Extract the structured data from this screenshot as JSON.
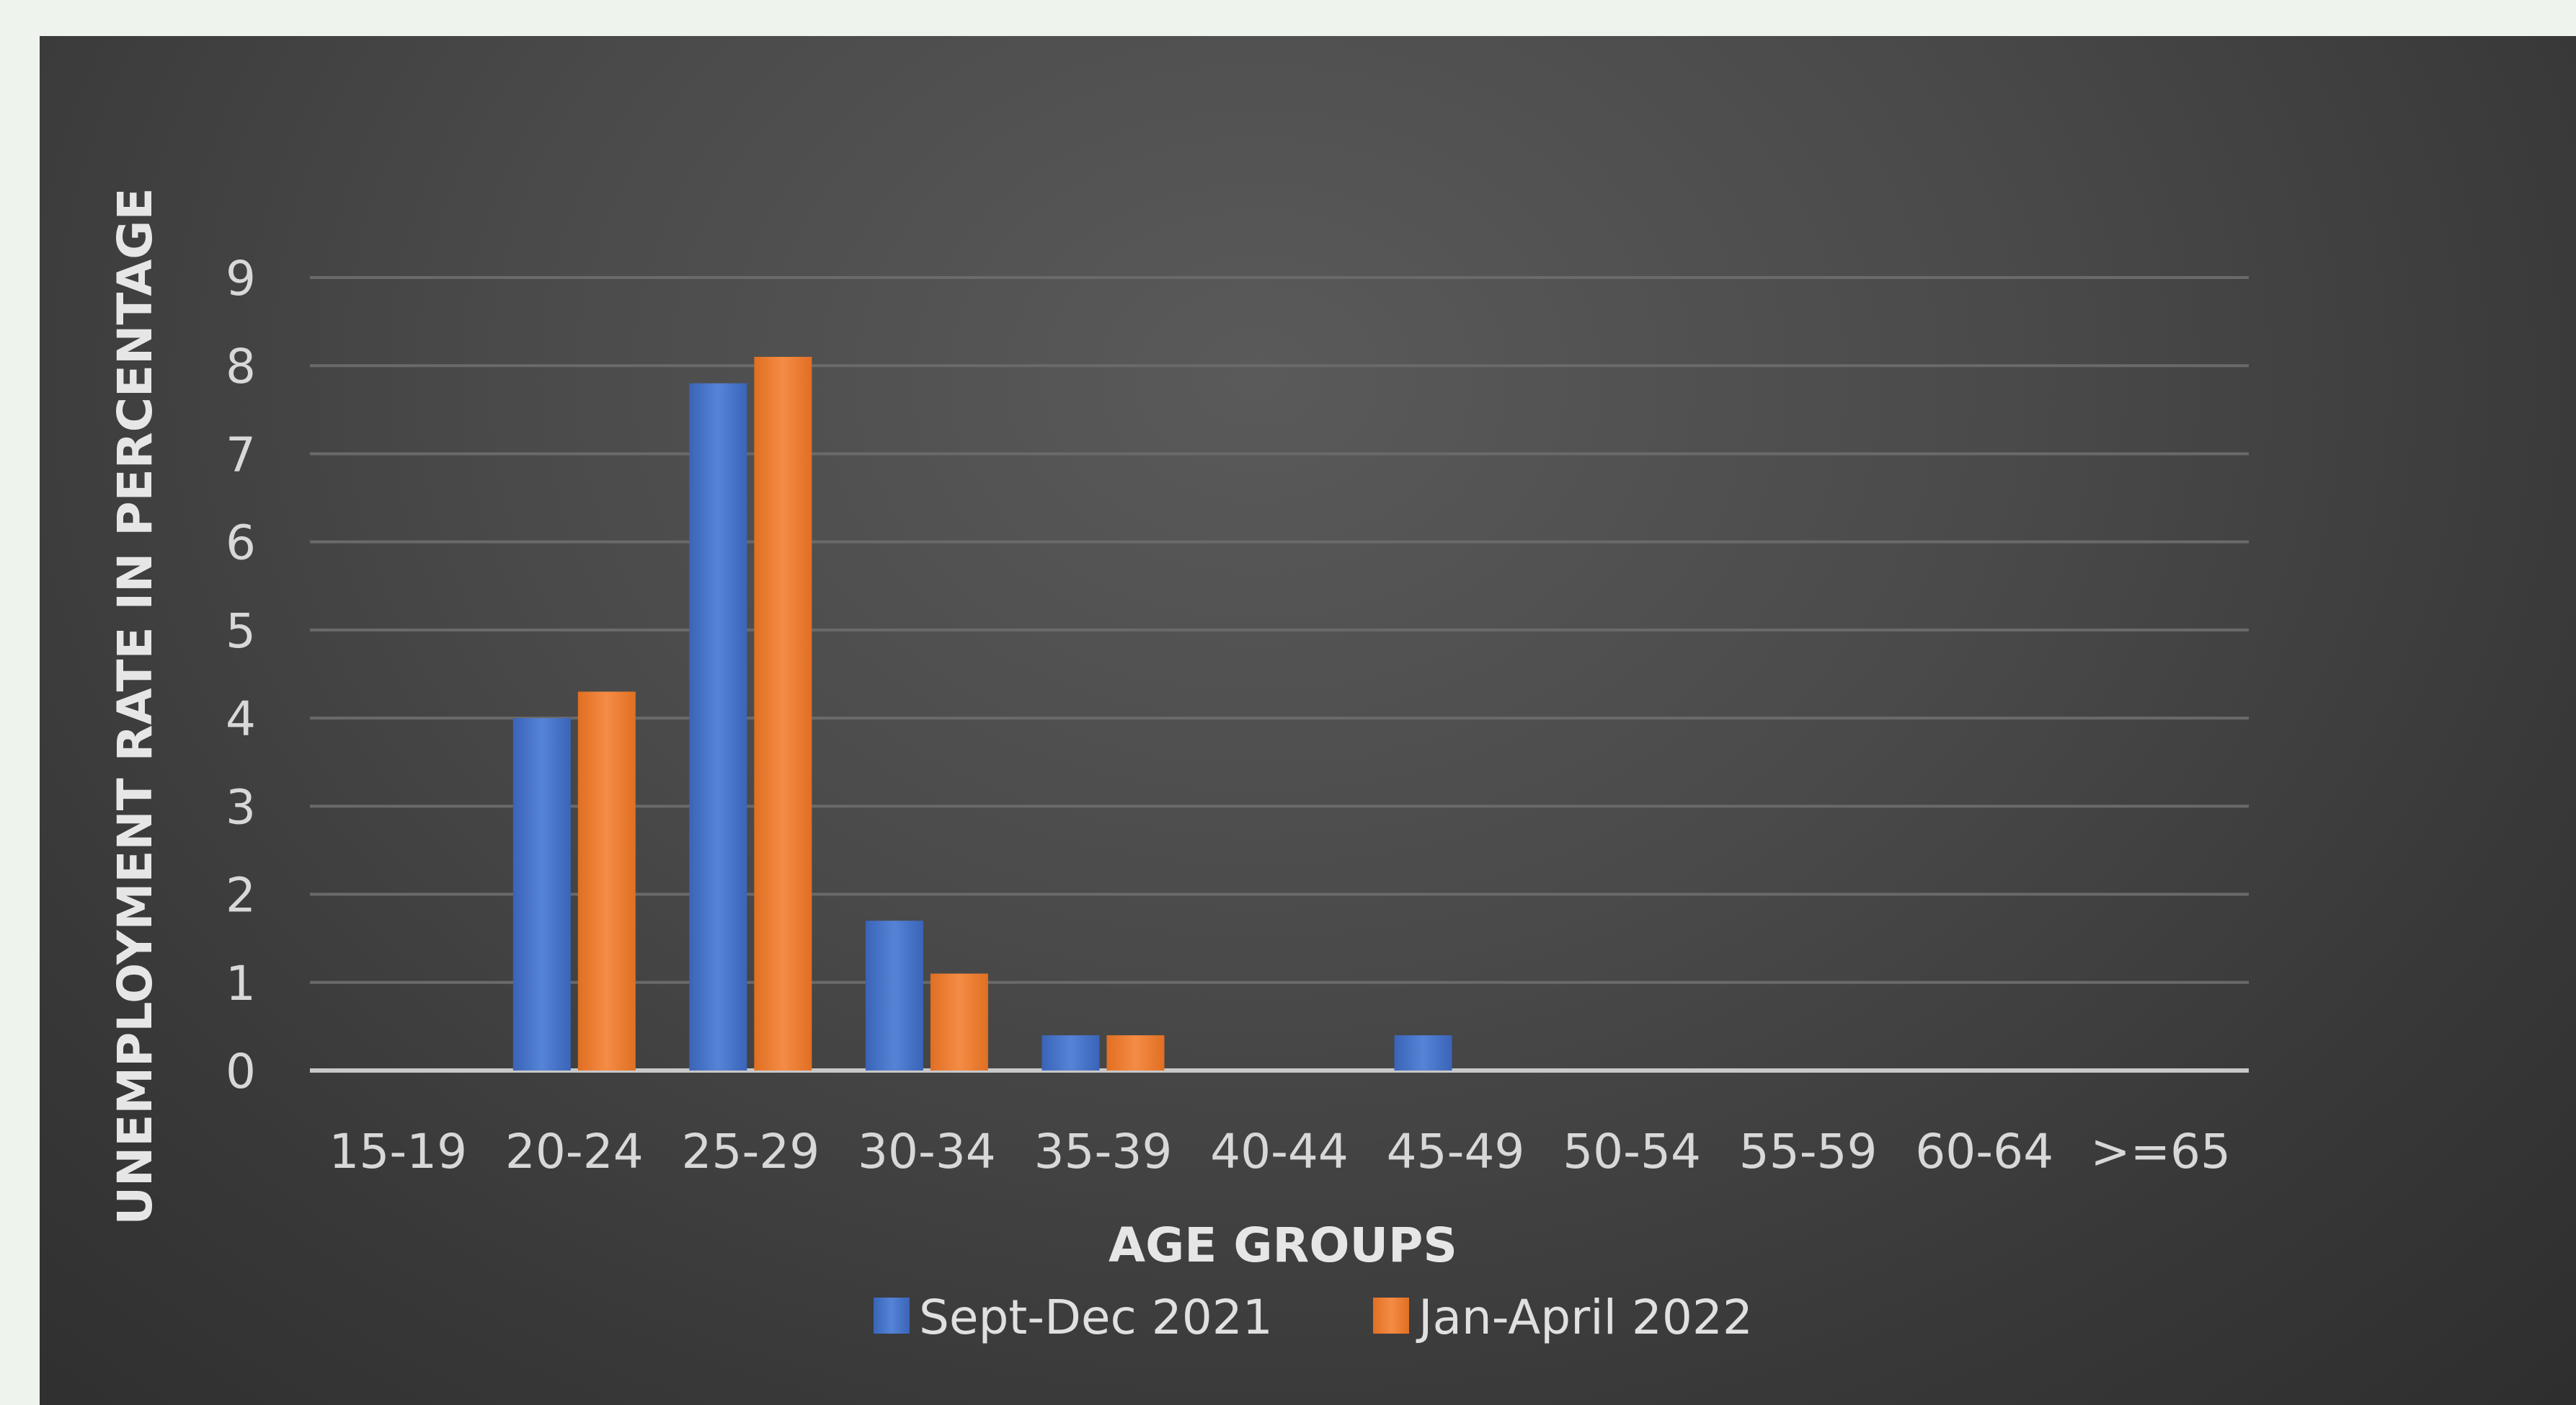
{
  "chart_data": {
    "type": "bar",
    "title": "",
    "xlabel": "AGE GROUPS",
    "ylabel": "UNEMPLOYMENT RATE IN PERCENTAGE",
    "ylim": [
      0,
      9
    ],
    "yticks": [
      0,
      1,
      2,
      3,
      4,
      5,
      6,
      7,
      8,
      9
    ],
    "grid": true,
    "legend_position": "bottom",
    "categories": [
      "15-19",
      "20-24",
      "25-29",
      "30-34",
      "35-39",
      "40-44",
      "45-49",
      "50-54",
      "55-59",
      "60-64",
      ">=65"
    ],
    "series": [
      {
        "name": "Sept-Dec 2021",
        "color": "#4472c4",
        "values": [
          0,
          4.0,
          7.8,
          1.7,
          0.4,
          0,
          0.4,
          0,
          0,
          0,
          0
        ]
      },
      {
        "name": "Jan-April 2022",
        "color": "#ed7d31",
        "values": [
          0,
          4.3,
          8.1,
          1.1,
          0.4,
          0,
          0,
          0,
          0,
          0,
          0
        ]
      }
    ]
  }
}
